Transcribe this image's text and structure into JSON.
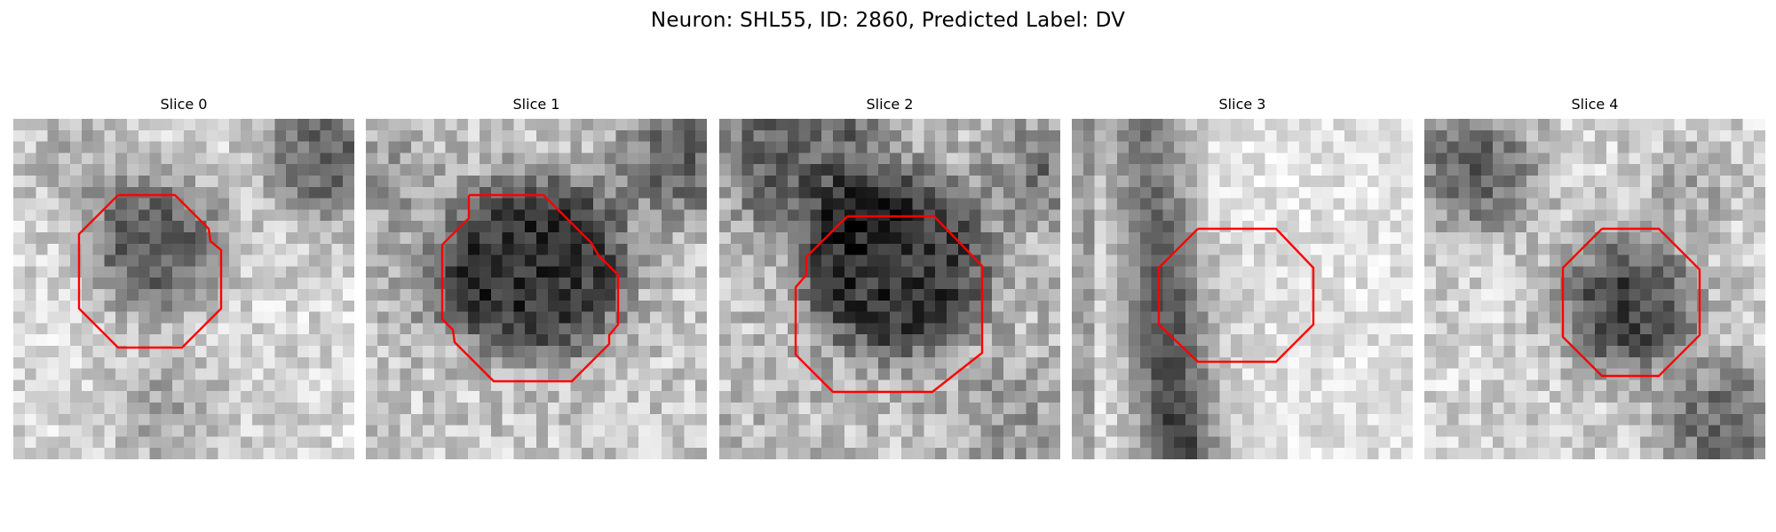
{
  "figure": {
    "title": "Neuron: SHL55, ID: 2860, Predicted Label: DV",
    "roi_color": "#ff0000",
    "colormap": "gray"
  },
  "slices": [
    {
      "title": "Slice 0"
    },
    {
      "title": "Slice 1"
    },
    {
      "title": "Slice 2"
    },
    {
      "title": "Slice 3"
    },
    {
      "title": "Slice 4"
    }
  ]
}
